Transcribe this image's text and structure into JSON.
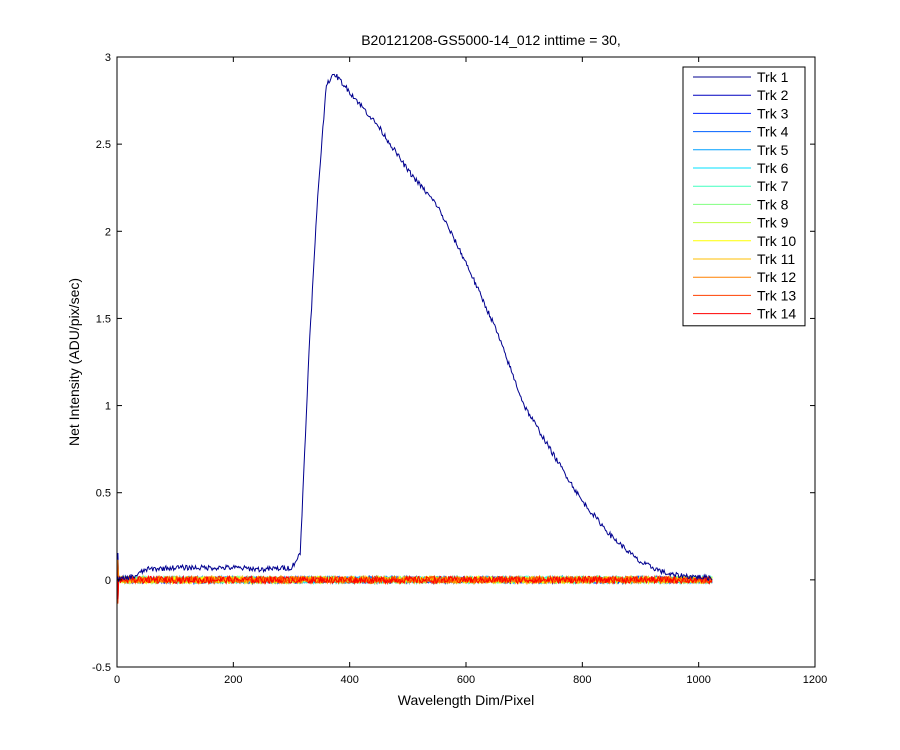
{
  "chart_data": {
    "type": "line",
    "title": "B20121208-GS5000-14_012 inttime = 30,",
    "xlabel": "Wavelength Dim/Pixel",
    "ylabel": "Net Intensity (ADU/pix/sec)",
    "xlim": [
      0,
      1200
    ],
    "ylim": [
      -0.5,
      3
    ],
    "xticks": [
      0,
      200,
      400,
      600,
      800,
      1000,
      1200
    ],
    "yticks": [
      -0.5,
      0,
      0.5,
      1,
      1.5,
      2,
      2.5,
      3
    ],
    "xtick_labels": [
      "0",
      "200",
      "400",
      "600",
      "800",
      "1000",
      "1200"
    ],
    "ytick_labels": [
      "-0.5",
      "0",
      "0.5",
      "1",
      "1.5",
      "2",
      "2.5",
      "3"
    ],
    "grid": false,
    "legend_position": "top-right",
    "series": [
      {
        "name": "Trk 1",
        "color": "#00008f",
        "noise": 0.015,
        "points": [
          [
            0,
            0.0
          ],
          [
            30,
            0.02
          ],
          [
            50,
            0.06
          ],
          [
            100,
            0.07
          ],
          [
            150,
            0.07
          ],
          [
            200,
            0.07
          ],
          [
            250,
            0.06
          ],
          [
            300,
            0.07
          ],
          [
            315,
            0.15
          ],
          [
            330,
            1.3
          ],
          [
            345,
            2.2
          ],
          [
            360,
            2.85
          ],
          [
            375,
            2.9
          ],
          [
            400,
            2.8
          ],
          [
            450,
            2.6
          ],
          [
            500,
            2.35
          ],
          [
            550,
            2.15
          ],
          [
            600,
            1.82
          ],
          [
            650,
            1.45
          ],
          [
            700,
            1.0
          ],
          [
            750,
            0.72
          ],
          [
            800,
            0.45
          ],
          [
            850,
            0.25
          ],
          [
            900,
            0.1
          ],
          [
            950,
            0.03
          ],
          [
            1024,
            0.01
          ]
        ]
      },
      {
        "name": "Trk 2",
        "color": "#0000bf",
        "noise": 0.02,
        "points": [
          [
            0,
            0
          ],
          [
            1024,
            0
          ]
        ]
      },
      {
        "name": "Trk 3",
        "color": "#0020ff",
        "noise": 0.02,
        "points": [
          [
            0,
            0
          ],
          [
            1024,
            0
          ]
        ]
      },
      {
        "name": "Trk 4",
        "color": "#0060ff",
        "noise": 0.02,
        "points": [
          [
            0,
            0
          ],
          [
            1024,
            0
          ]
        ]
      },
      {
        "name": "Trk 5",
        "color": "#00a0ff",
        "noise": 0.02,
        "points": [
          [
            0,
            0
          ],
          [
            1024,
            0
          ]
        ]
      },
      {
        "name": "Trk 6",
        "color": "#00e0ff",
        "noise": 0.02,
        "points": [
          [
            0,
            0
          ],
          [
            1024,
            0
          ]
        ]
      },
      {
        "name": "Trk 7",
        "color": "#40ffbf",
        "noise": 0.02,
        "points": [
          [
            0,
            0
          ],
          [
            1024,
            0
          ]
        ]
      },
      {
        "name": "Trk 8",
        "color": "#80ff80",
        "noise": 0.02,
        "points": [
          [
            0,
            0
          ],
          [
            1024,
            0
          ]
        ]
      },
      {
        "name": "Trk 9",
        "color": "#bfff40",
        "noise": 0.02,
        "points": [
          [
            0,
            0
          ],
          [
            1024,
            0
          ]
        ]
      },
      {
        "name": "Trk 10",
        "color": "#ffff00",
        "noise": 0.02,
        "points": [
          [
            0,
            0
          ],
          [
            1024,
            0
          ]
        ]
      },
      {
        "name": "Trk 11",
        "color": "#ffbf00",
        "noise": 0.02,
        "points": [
          [
            0,
            0
          ],
          [
            1024,
            0
          ]
        ]
      },
      {
        "name": "Trk 12",
        "color": "#ff8000",
        "noise": 0.02,
        "points": [
          [
            0,
            0
          ],
          [
            1024,
            0
          ]
        ]
      },
      {
        "name": "Trk 13",
        "color": "#ff4000",
        "noise": 0.02,
        "points": [
          [
            0,
            0
          ],
          [
            1024,
            0
          ]
        ]
      },
      {
        "name": "Trk 14",
        "color": "#ff0000",
        "noise": 0.02,
        "points": [
          [
            0,
            0
          ],
          [
            1024,
            0
          ]
        ]
      }
    ]
  }
}
